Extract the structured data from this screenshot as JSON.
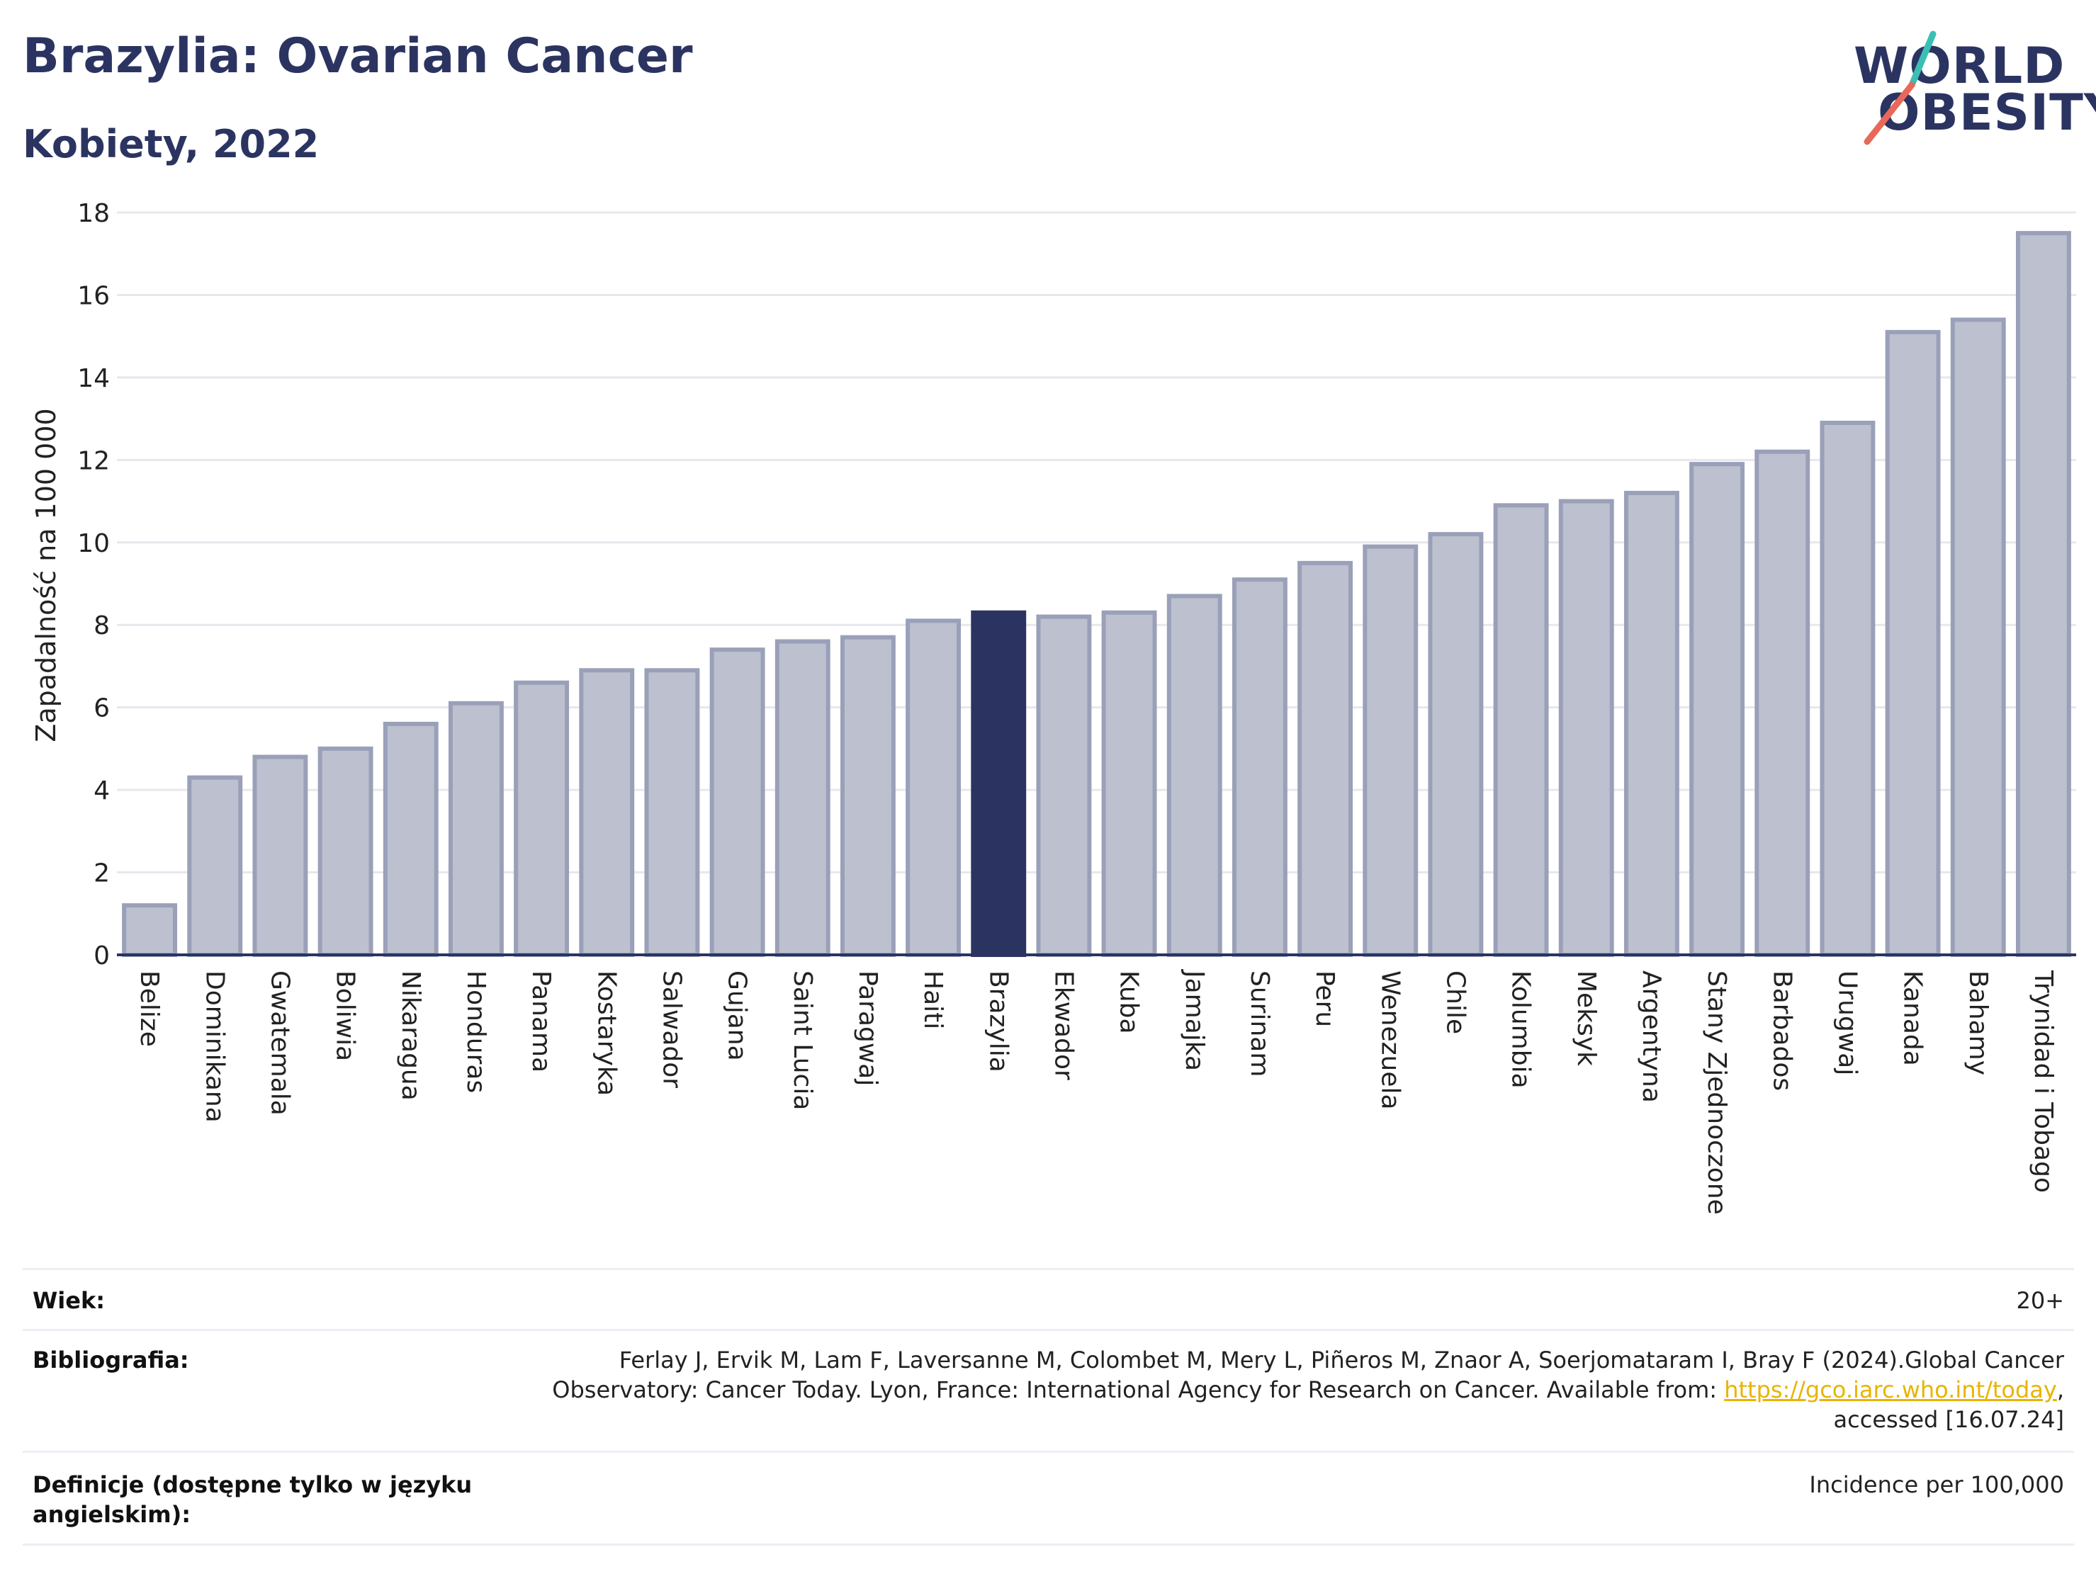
{
  "header": {
    "title": "Brazylia: Ovarian Cancer",
    "subtitle": "Kobiety, 2022"
  },
  "logo": {
    "line1": "WORLD",
    "line2": "OBESITY",
    "colors": {
      "text": "#2b3461",
      "slash_top": "#3bbfb5",
      "slash_bottom": "#e8685a"
    }
  },
  "chart_data": {
    "type": "bar",
    "title": "Brazylia: Ovarian Cancer",
    "subtitle": "Kobiety, 2022",
    "xlabel": "",
    "ylabel": "Zapadalność na 100 000",
    "ylim": [
      0,
      18
    ],
    "yticks": [
      0,
      2,
      4,
      6,
      8,
      10,
      12,
      14,
      16,
      18
    ],
    "grid": true,
    "highlight": "Brazylia",
    "colors": {
      "bar": "#bcc0cf",
      "bar_border": "#9aa0b8",
      "highlight": "#2b3461",
      "grid": "#e6e8ee",
      "axis": "#2b3461"
    },
    "categories": [
      "Belize",
      "Dominikana",
      "Gwatemala",
      "Boliwia",
      "Nikaragua",
      "Honduras",
      "Panama",
      "Kostaryka",
      "Salwador",
      "Gujana",
      "Saint Lucia",
      "Paragwaj",
      "Haiti",
      "Brazylia",
      "Ekwador",
      "Kuba",
      "Jamajka",
      "Surinam",
      "Peru",
      "Wenezuela",
      "Chile",
      "Kolumbia",
      "Meksyk",
      "Argentyna",
      "Stany Zjednoczone",
      "Barbados",
      "Urugwaj",
      "Kanada",
      "Bahamy",
      "Trynidad i Tobago"
    ],
    "values": [
      1.2,
      4.3,
      4.8,
      5.0,
      5.6,
      6.1,
      6.6,
      6.9,
      6.9,
      7.4,
      7.6,
      7.7,
      8.1,
      8.3,
      8.2,
      8.3,
      8.7,
      9.1,
      9.5,
      9.9,
      10.2,
      10.9,
      11.0,
      11.2,
      11.9,
      12.2,
      12.9,
      15.1,
      15.4,
      17.5
    ]
  },
  "info": {
    "age_label": "Wiek:",
    "age_value": "20+",
    "bib_label": "Bibliografia:",
    "bib_line1": "Ferlay J, Ervik M, Lam F, Laversanne M, Colombet M, Mery L, Piñeros M, Znaor A, Soerjomataram I, Bray F (2024).Global Cancer",
    "bib_line2_pre": "Observatory: Cancer Today. Lyon, France: International Agency for Research on Cancer. Available from: ",
    "bib_link": "https://gco.iarc.who.int/today",
    "bib_line2_post": ",",
    "bib_line3": "accessed [16.07.24]",
    "def_label_line1": "Definicje (dostępne tylko w języku",
    "def_label_line2": "angielskim):",
    "def_value": "Incidence per 100,000"
  }
}
